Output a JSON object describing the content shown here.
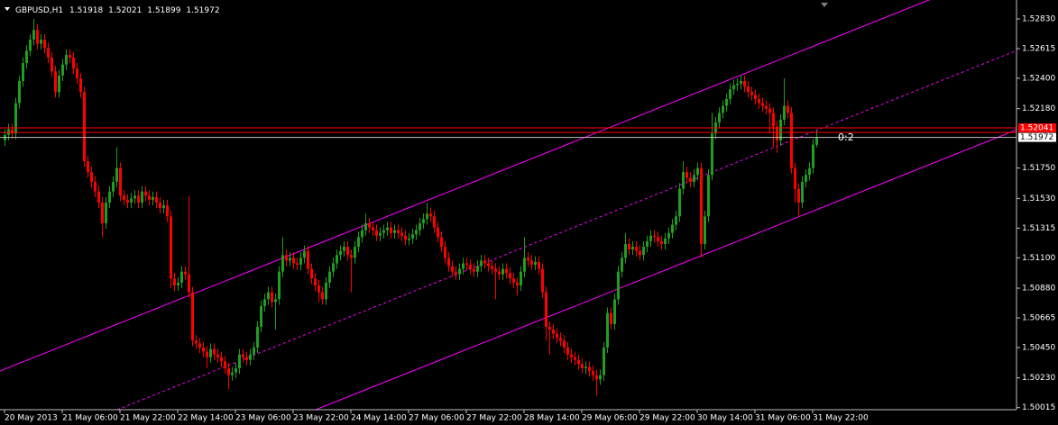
{
  "chart_data": {
    "type": "candlestick",
    "title": "GBPUSD,H1",
    "channel_label": "0:2",
    "up_color": "#1f9e1f",
    "down_color": "#ff0000",
    "price_line_color": "#ff0000",
    "ylim": [
      1.5,
      1.52967
    ],
    "yticks": [
      {
        "value": 1.5283,
        "label": "1.52830"
      },
      1.52615,
      {
        "value": 1.524,
        "label": "1.52400"
      },
      {
        "value": 1.5218,
        "label": "1.52180"
      },
      {
        "value": 1.5175,
        "label": "1.51750"
      },
      {
        "value": 1.5153,
        "label": "1.51530"
      },
      1.51315,
      {
        "value": 1.511,
        "label": "1.51100"
      },
      {
        "value": 1.5088,
        "label": "1.50880"
      },
      1.50665,
      {
        "value": 1.5045,
        "label": "1.50450"
      },
      {
        "value": 1.5023,
        "label": "1.50230"
      },
      1.50015
    ],
    "price_lines": [
      1.52041,
      1.52008
    ],
    "categories": [
      "20 May 2013",
      null,
      null,
      null,
      null,
      null,
      null,
      null,
      null,
      null,
      null,
      null,
      null,
      null,
      null,
      null,
      "21 May 06:00",
      null,
      null,
      null,
      null,
      null,
      null,
      null,
      null,
      null,
      null,
      null,
      null,
      null,
      null,
      null,
      "21 May 22:00",
      null,
      null,
      null,
      null,
      null,
      null,
      null,
      null,
      null,
      null,
      null,
      null,
      null,
      null,
      null,
      "22 May 14:00",
      null,
      null,
      null,
      null,
      null,
      null,
      null,
      null,
      null,
      null,
      null,
      null,
      null,
      null,
      null,
      "23 May 06:00",
      null,
      null,
      null,
      null,
      null,
      null,
      null,
      null,
      null,
      null,
      null,
      null,
      null,
      null,
      null,
      "23 May 22:00",
      null,
      null,
      null,
      null,
      null,
      null,
      null,
      null,
      null,
      null,
      null,
      null,
      null,
      null,
      null,
      "24 May 14:00",
      null,
      null,
      null,
      null,
      null,
      null,
      null,
      null,
      null,
      null,
      null,
      null,
      null,
      null,
      null,
      "27 May 06:00",
      null,
      null,
      null,
      null,
      null,
      null,
      null,
      null,
      null,
      null,
      null,
      null,
      null,
      null,
      null,
      "27 May 22:00",
      null,
      null,
      null,
      null,
      null,
      null,
      null,
      null,
      null,
      null,
      null,
      null,
      null,
      null,
      null,
      "28 May 14:00",
      null,
      null,
      null,
      null,
      null,
      null,
      null,
      null,
      null,
      null,
      null,
      null,
      null,
      null,
      null,
      "29 May 06:00",
      null,
      null,
      null,
      null,
      null,
      null,
      null,
      null,
      null,
      null,
      null,
      null,
      null,
      null,
      null,
      "29 May 22:00",
      null,
      null,
      null,
      null,
      null,
      null,
      null,
      null,
      null,
      null,
      null,
      null,
      null,
      null,
      null,
      "30 May 14:00",
      null,
      null,
      null,
      null,
      null,
      null,
      null,
      null,
      null,
      null,
      null,
      null,
      null,
      null,
      null,
      "31 May 06:00",
      null,
      null,
      null,
      null,
      null,
      null,
      null,
      null,
      null,
      null,
      null,
      null,
      null,
      null,
      null,
      "31 May 22:00",
      null
    ],
    "open": [
      1.5195,
      1.5199,
      1.5203,
      1.52,
      1.5222,
      1.5238,
      1.5251,
      1.526,
      1.5268,
      1.5275,
      1.5265,
      1.5268,
      1.5262,
      1.5255,
      1.5245,
      1.523,
      1.5242,
      1.525,
      1.5257,
      1.5255,
      1.5247,
      1.524,
      1.523,
      1.518,
      1.5172,
      1.5165,
      1.5158,
      1.515,
      1.5135,
      1.515,
      1.5158,
      1.5165,
      1.5175,
      1.5155,
      1.5152,
      1.515,
      1.5153,
      1.5155,
      1.515,
      1.5158,
      1.5155,
      1.5152,
      1.5154,
      1.515,
      1.5146,
      1.5148,
      1.514,
      1.5095,
      1.509,
      1.5092,
      1.51,
      1.5098,
      1.5085,
      1.505,
      1.5048,
      1.5045,
      1.5042,
      1.5038,
      1.5044,
      1.504,
      1.5038,
      1.5035,
      1.503,
      1.5025,
      1.5027,
      1.503,
      1.504,
      1.5038,
      1.5036,
      1.504,
      1.5045,
      1.506,
      1.5075,
      1.508,
      1.5085,
      1.5078,
      1.508,
      1.51,
      1.5112,
      1.5108,
      1.511,
      1.5106,
      1.5105,
      1.511,
      1.5115,
      1.5102,
      1.5095,
      1.509,
      1.5085,
      1.508,
      1.5092,
      1.51,
      1.5106,
      1.5112,
      1.5115,
      1.5118,
      1.5112,
      1.511,
      1.5118,
      1.5125,
      1.513,
      1.5135,
      1.5132,
      1.513,
      1.5126,
      1.5128,
      1.513,
      1.5132,
      1.5128,
      1.513,
      1.5128,
      1.5126,
      1.5123,
      1.5124,
      1.5127,
      1.513,
      1.5135,
      1.5138,
      1.5142,
      1.514,
      1.5132,
      1.5125,
      1.5118,
      1.511,
      1.5104,
      1.51,
      1.5098,
      1.5102,
      1.5106,
      1.5105,
      1.5102,
      1.51,
      1.5104,
      1.5108,
      1.5106,
      1.5104,
      1.5102,
      1.51,
      1.5098,
      1.5102,
      1.5099,
      1.5095,
      1.5092,
      1.509,
      1.51,
      1.511,
      1.5108,
      1.5105,
      1.5107,
      1.5102,
      1.5085,
      1.506,
      1.5058,
      1.5055,
      1.5052,
      1.505,
      1.5045,
      1.504,
      1.5038,
      1.5036,
      1.5033,
      1.503,
      1.5031,
      1.5028,
      1.5025,
      1.5022,
      1.5025,
      1.5045,
      1.507,
      1.5062,
      1.508,
      1.51,
      1.511,
      1.512,
      1.5116,
      1.5118,
      1.5115,
      1.5112,
      1.5118,
      1.5122,
      1.5126,
      1.5125,
      1.5122,
      1.512,
      1.5124,
      1.5128,
      1.5134,
      1.514,
      1.516,
      1.5172,
      1.5168,
      1.5165,
      1.517,
      1.5175,
      1.512,
      1.514,
      1.517,
      1.52,
      1.5208,
      1.5215,
      1.522,
      1.5225,
      1.5232,
      1.5235,
      1.5236,
      1.5238,
      1.5234,
      1.523,
      1.5228,
      1.5225,
      1.5222,
      1.522,
      1.5218,
      1.5215,
      1.5205,
      1.5195,
      1.521,
      1.522,
      1.5215,
      1.5175,
      1.516,
      1.515,
      1.5165,
      1.517,
      1.5175,
      1.51918
    ],
    "high": [
      1.5203,
      1.5207,
      1.5207,
      1.5226,
      1.5242,
      1.5255,
      1.5264,
      1.5272,
      1.5283,
      1.5279,
      1.5272,
      1.5272,
      1.5266,
      1.5259,
      1.5249,
      1.5246,
      1.5254,
      1.5261,
      1.5261,
      1.5259,
      1.5251,
      1.5244,
      1.5234,
      1.5184,
      1.5176,
      1.5169,
      1.5162,
      1.5154,
      1.5154,
      1.5162,
      1.5169,
      1.519,
      1.5179,
      1.5159,
      1.5156,
      1.5157,
      1.5159,
      1.5159,
      1.5162,
      1.5162,
      1.5159,
      1.5158,
      1.5158,
      1.5154,
      1.5152,
      1.5152,
      1.5144,
      1.5099,
      1.5096,
      1.5104,
      1.5104,
      1.5155,
      1.5089,
      1.5054,
      1.5052,
      1.5049,
      1.5046,
      1.5048,
      1.5048,
      1.5044,
      1.5042,
      1.5039,
      1.5034,
      1.5031,
      1.5034,
      1.5044,
      1.5044,
      1.5042,
      1.5044,
      1.5049,
      1.5064,
      1.5079,
      1.5084,
      1.5089,
      1.5089,
      1.5084,
      1.5104,
      1.5125,
      1.5116,
      1.5114,
      1.5114,
      1.511,
      1.5114,
      1.5119,
      1.5119,
      1.5106,
      1.5099,
      1.5094,
      1.5089,
      1.5096,
      1.5104,
      1.511,
      1.5116,
      1.5119,
      1.5122,
      1.5122,
      1.5116,
      1.5122,
      1.5129,
      1.5134,
      1.5142,
      1.5139,
      1.5136,
      1.5134,
      1.5132,
      1.5134,
      1.5136,
      1.5136,
      1.5134,
      1.5134,
      1.5132,
      1.513,
      1.5128,
      1.5131,
      1.5134,
      1.5139,
      1.5142,
      1.515,
      1.5146,
      1.5144,
      1.5136,
      1.5129,
      1.5122,
      1.5114,
      1.5108,
      1.5104,
      1.5106,
      1.511,
      1.511,
      1.5109,
      1.5106,
      1.5108,
      1.5112,
      1.5112,
      1.511,
      1.5108,
      1.5106,
      1.5104,
      1.5106,
      1.5106,
      1.5103,
      1.5099,
      1.5096,
      1.5104,
      1.5125,
      1.5114,
      1.5112,
      1.5111,
      1.5111,
      1.5106,
      1.5089,
      1.5064,
      1.5062,
      1.5059,
      1.5056,
      1.5054,
      1.5049,
      1.5044,
      1.5042,
      1.504,
      1.5037,
      1.5035,
      1.5035,
      1.5032,
      1.5029,
      1.5029,
      1.5049,
      1.5074,
      1.5074,
      1.5084,
      1.5104,
      1.5114,
      1.5128,
      1.5124,
      1.5122,
      1.5122,
      1.5119,
      1.5122,
      1.5126,
      1.513,
      1.513,
      1.5129,
      1.5126,
      1.5128,
      1.5132,
      1.5138,
      1.5144,
      1.5164,
      1.518,
      1.5176,
      1.5172,
      1.5174,
      1.5179,
      1.5179,
      1.5144,
      1.5174,
      1.5215,
      1.5212,
      1.5219,
      1.5224,
      1.5229,
      1.5236,
      1.5239,
      1.524,
      1.5242,
      1.5242,
      1.5238,
      1.5234,
      1.5232,
      1.5229,
      1.5226,
      1.5224,
      1.5222,
      1.5219,
      1.5209,
      1.5214,
      1.524,
      1.5224,
      1.5219,
      1.5179,
      1.5164,
      1.5169,
      1.5174,
      1.5179,
      1.5196,
      1.52021
    ],
    "low": [
      1.5191,
      1.5195,
      1.5196,
      1.5196,
      1.5218,
      1.5234,
      1.5247,
      1.5256,
      1.5264,
      1.5261,
      1.5261,
      1.5258,
      1.5251,
      1.5241,
      1.5226,
      1.5226,
      1.5238,
      1.5246,
      1.5251,
      1.5243,
      1.5236,
      1.5226,
      1.5176,
      1.5168,
      1.5161,
      1.5154,
      1.5146,
      1.5125,
      1.5131,
      1.5146,
      1.5154,
      1.5161,
      1.5151,
      1.5148,
      1.5146,
      1.5146,
      1.5149,
      1.5146,
      1.5146,
      1.5151,
      1.5148,
      1.5148,
      1.5146,
      1.5142,
      1.5142,
      1.5136,
      1.5088,
      1.5086,
      1.5086,
      1.5088,
      1.5094,
      1.5081,
      1.5046,
      1.5044,
      1.5041,
      1.5038,
      1.503,
      1.5034,
      1.5036,
      1.5034,
      1.5031,
      1.5026,
      1.5015,
      1.5021,
      1.5023,
      1.5026,
      1.5034,
      1.5032,
      1.5032,
      1.5036,
      1.5041,
      1.5056,
      1.5071,
      1.5076,
      1.5074,
      1.5058,
      1.5076,
      1.5096,
      1.5104,
      1.5104,
      1.5102,
      1.5101,
      1.5101,
      1.5106,
      1.5098,
      1.5091,
      1.5086,
      1.5078,
      1.5076,
      1.5076,
      1.5088,
      1.5096,
      1.5102,
      1.5108,
      1.5111,
      1.5108,
      1.5085,
      1.5106,
      1.5114,
      1.5121,
      1.5126,
      1.5128,
      1.5126,
      1.5122,
      1.5122,
      1.5124,
      1.5126,
      1.5124,
      1.5124,
      1.5124,
      1.5122,
      1.5119,
      1.5119,
      1.512,
      1.5123,
      1.5126,
      1.5131,
      1.5134,
      1.5136,
      1.5128,
      1.5121,
      1.5114,
      1.5106,
      1.51,
      1.5096,
      1.5094,
      1.5094,
      1.5098,
      1.5101,
      1.5098,
      1.5096,
      1.5096,
      1.51,
      1.5102,
      1.51,
      1.5098,
      1.508,
      1.5094,
      1.5094,
      1.5095,
      1.5091,
      1.5088,
      1.5083,
      1.5086,
      1.5096,
      1.5104,
      1.5101,
      1.5101,
      1.5098,
      1.5081,
      1.505,
      1.504,
      1.5051,
      1.5048,
      1.5046,
      1.5041,
      1.5036,
      1.5034,
      1.5032,
      1.5029,
      1.5026,
      1.5026,
      1.5024,
      1.5021,
      1.501,
      1.5018,
      1.5021,
      1.5041,
      1.5058,
      1.5058,
      1.5076,
      1.5096,
      1.5106,
      1.5112,
      1.5112,
      1.5111,
      1.5108,
      1.5108,
      1.5114,
      1.5118,
      1.5121,
      1.5118,
      1.5116,
      1.5116,
      1.512,
      1.5124,
      1.513,
      1.5136,
      1.5156,
      1.5164,
      1.5161,
      1.5161,
      1.5166,
      1.511,
      1.5116,
      1.5136,
      1.5166,
      1.5196,
      1.5204,
      1.5211,
      1.5216,
      1.5221,
      1.5228,
      1.5231,
      1.5232,
      1.523,
      1.5226,
      1.5224,
      1.5221,
      1.5218,
      1.5216,
      1.5214,
      1.52,
      1.519,
      1.5186,
      1.5191,
      1.5206,
      1.5211,
      1.5171,
      1.515,
      1.514,
      1.5146,
      1.5161,
      1.5166,
      1.5171,
      1.51899
    ],
    "close": [
      1.5199,
      1.5203,
      1.52,
      1.5222,
      1.5238,
      1.5251,
      1.526,
      1.5268,
      1.5275,
      1.5265,
      1.5268,
      1.5262,
      1.5255,
      1.5245,
      1.523,
      1.5242,
      1.525,
      1.5257,
      1.5255,
      1.5247,
      1.524,
      1.523,
      1.518,
      1.5172,
      1.5165,
      1.5158,
      1.515,
      1.5135,
      1.515,
      1.5158,
      1.5165,
      1.5175,
      1.5155,
      1.5152,
      1.515,
      1.5153,
      1.5155,
      1.515,
      1.5158,
      1.5155,
      1.5152,
      1.5154,
      1.515,
      1.5146,
      1.5148,
      1.514,
      1.5095,
      1.509,
      1.5092,
      1.51,
      1.5098,
      1.5085,
      1.505,
      1.5048,
      1.5045,
      1.5042,
      1.5038,
      1.5044,
      1.504,
      1.5038,
      1.5035,
      1.503,
      1.5025,
      1.5027,
      1.503,
      1.504,
      1.5038,
      1.5036,
      1.504,
      1.5045,
      1.506,
      1.5075,
      1.508,
      1.5085,
      1.5078,
      1.508,
      1.51,
      1.5112,
      1.5108,
      1.511,
      1.5106,
      1.5105,
      1.511,
      1.5115,
      1.5102,
      1.5095,
      1.509,
      1.5085,
      1.508,
      1.5092,
      1.51,
      1.5106,
      1.5112,
      1.5115,
      1.5118,
      1.5112,
      1.511,
      1.5118,
      1.5125,
      1.513,
      1.5135,
      1.5132,
      1.513,
      1.5126,
      1.5128,
      1.513,
      1.5132,
      1.5128,
      1.513,
      1.5128,
      1.5126,
      1.5123,
      1.5124,
      1.5127,
      1.513,
      1.5135,
      1.5138,
      1.5142,
      1.514,
      1.5132,
      1.5125,
      1.5118,
      1.511,
      1.5104,
      1.51,
      1.5098,
      1.5102,
      1.5106,
      1.5105,
      1.5102,
      1.51,
      1.5104,
      1.5108,
      1.5106,
      1.5104,
      1.5102,
      1.51,
      1.5098,
      1.5102,
      1.5099,
      1.5095,
      1.5092,
      1.509,
      1.51,
      1.511,
      1.5108,
      1.5105,
      1.5107,
      1.5102,
      1.5085,
      1.506,
      1.5058,
      1.5055,
      1.5052,
      1.505,
      1.5045,
      1.504,
      1.5038,
      1.5036,
      1.5033,
      1.503,
      1.5031,
      1.5028,
      1.5025,
      1.5022,
      1.5025,
      1.5045,
      1.507,
      1.5062,
      1.508,
      1.51,
      1.511,
      1.512,
      1.5116,
      1.5118,
      1.5115,
      1.5112,
      1.5118,
      1.5122,
      1.5126,
      1.5125,
      1.5122,
      1.512,
      1.5124,
      1.5128,
      1.5134,
      1.514,
      1.516,
      1.5172,
      1.5168,
      1.5165,
      1.517,
      1.5175,
      1.512,
      1.514,
      1.517,
      1.52,
      1.5208,
      1.5215,
      1.522,
      1.5225,
      1.5232,
      1.5235,
      1.5236,
      1.5238,
      1.5234,
      1.523,
      1.5228,
      1.5225,
      1.5222,
      1.522,
      1.5218,
      1.5215,
      1.5205,
      1.5195,
      1.521,
      1.522,
      1.5215,
      1.5175,
      1.516,
      1.515,
      1.5165,
      1.517,
      1.5175,
      1.5192,
      1.51972
    ]
  }
}
